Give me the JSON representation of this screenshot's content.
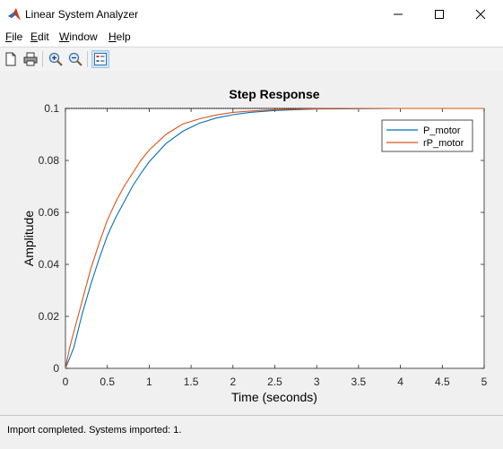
{
  "window": {
    "title": "Linear System Analyzer",
    "icon": "matlab-icon",
    "controls": [
      "minimize-icon",
      "maximize-icon",
      "close-icon"
    ]
  },
  "menu": [
    "File",
    "Edit",
    "Window",
    "Help"
  ],
  "toolbar": {
    "buttons": [
      "new-icon",
      "print-icon",
      "zoom-in-icon",
      "zoom-out-icon",
      "legend-toggle-icon"
    ],
    "active": "legend-toggle-icon"
  },
  "status": {
    "text": "Import completed. Systems imported: 1."
  },
  "chart_data": {
    "type": "line",
    "title": "Step Response",
    "xlabel": "Time (seconds)",
    "ylabel": "Amplitude",
    "xlim": [
      0,
      5
    ],
    "ylim": [
      0,
      0.1
    ],
    "xticks": [
      "0",
      "0.5",
      "1",
      "1.5",
      "2",
      "2.5",
      "3",
      "3.5",
      "4",
      "4.5",
      "5"
    ],
    "yticks": [
      "0",
      "0.02",
      "0.04",
      "0.06",
      "0.08",
      "0.1"
    ],
    "grid": false,
    "legend_position": "top-right",
    "reference_line": 0.1,
    "series": [
      {
        "name": "P_motor",
        "color": "#0072bd",
        "x": [
          0,
          0.05,
          0.1,
          0.2,
          0.3,
          0.4,
          0.5,
          0.6,
          0.7,
          0.8,
          0.9,
          1.0,
          1.2,
          1.4,
          1.6,
          1.8,
          2.0,
          2.2,
          2.5,
          3.0,
          3.5,
          4.0,
          4.5,
          5.0
        ],
        "values": [
          0,
          0.004,
          0.008,
          0.021,
          0.032,
          0.042,
          0.051,
          0.058,
          0.064,
          0.07,
          0.075,
          0.0795,
          0.0865,
          0.0912,
          0.0943,
          0.0963,
          0.0976,
          0.0985,
          0.0992,
          0.0998,
          0.0999,
          0.1,
          0.1,
          0.1
        ]
      },
      {
        "name": "rP_motor",
        "color": "#d95319",
        "x": [
          0,
          0.05,
          0.1,
          0.2,
          0.3,
          0.4,
          0.5,
          0.6,
          0.7,
          0.8,
          0.9,
          1.0,
          1.2,
          1.4,
          1.6,
          1.8,
          2.0,
          2.2,
          2.5,
          3.0,
          3.5,
          4.0,
          4.5,
          5.0
        ],
        "values": [
          0,
          0.008,
          0.014,
          0.026,
          0.038,
          0.048,
          0.057,
          0.064,
          0.07,
          0.075,
          0.08,
          0.084,
          0.09,
          0.094,
          0.096,
          0.0975,
          0.0985,
          0.099,
          0.0995,
          0.0999,
          0.1,
          0.1,
          0.1,
          0.1
        ]
      }
    ]
  }
}
